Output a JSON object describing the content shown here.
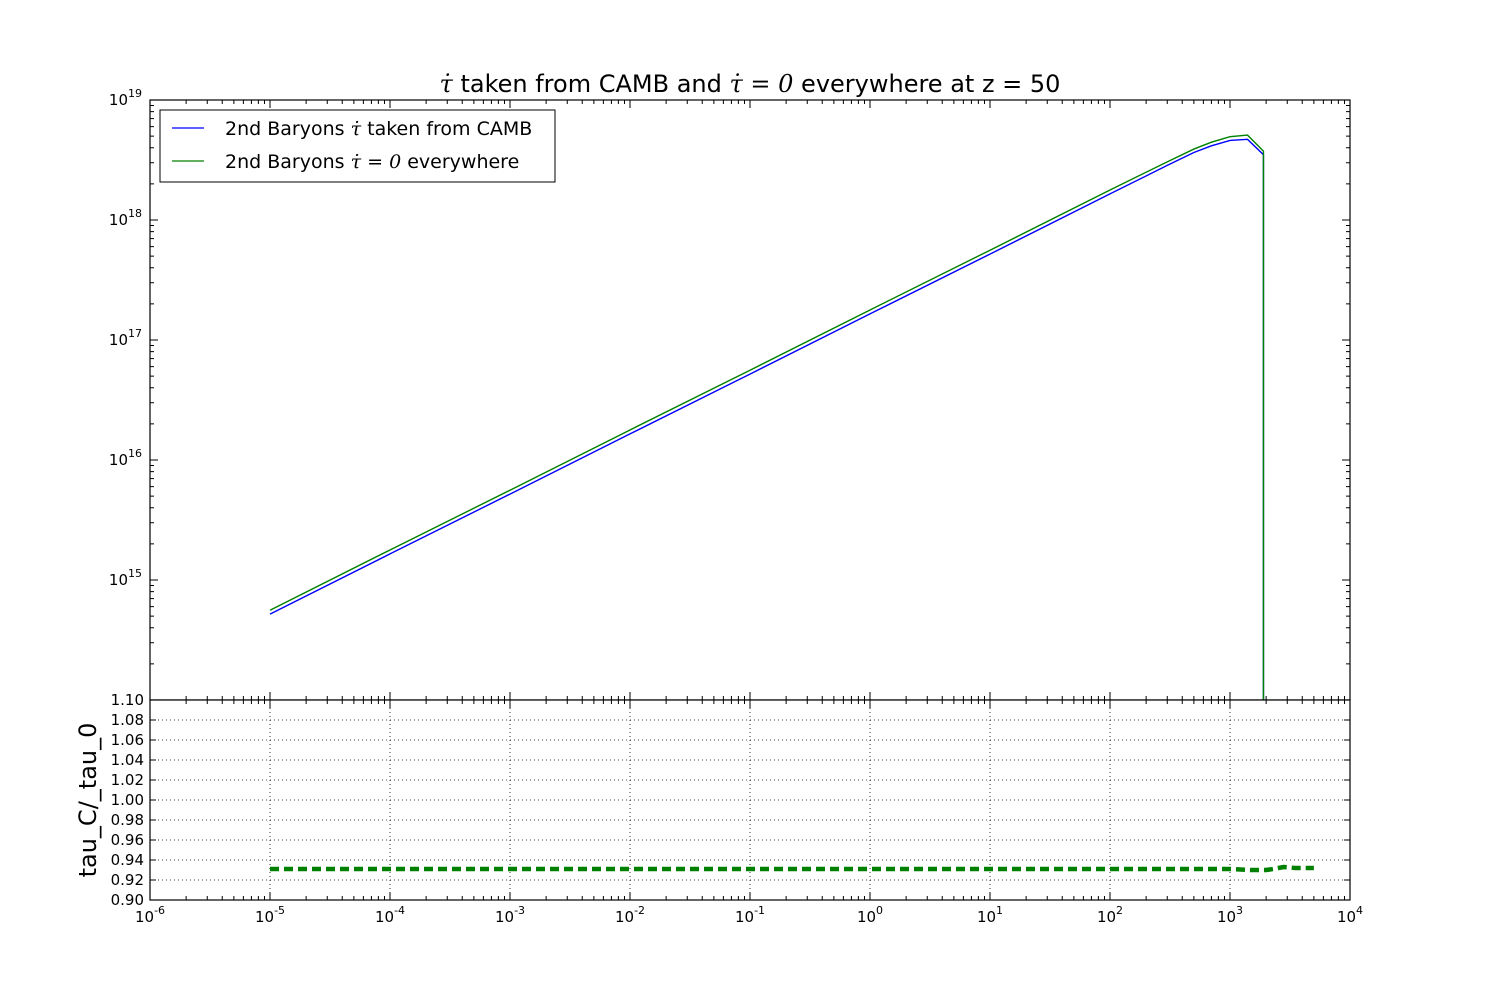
{
  "chart_data": [
    {
      "type": "line",
      "panel": "main",
      "title": {
        "sym1": "τ̇",
        "part1": " taken from CAMB and ",
        "sym2": "τ̇ = 0",
        "part2": " everywhere at z = 50"
      },
      "xscale": "log",
      "yscale": "log",
      "xlim": [
        1e-06,
        10000.0
      ],
      "ylim": [
        100000000000000.0,
        1e+19
      ],
      "grid": false,
      "legend_position": "top-left",
      "ytick_labels": [
        {
          "value": 1000000000000000.0,
          "base": "10",
          "exp": "15"
        },
        {
          "value": 1e+16,
          "base": "10",
          "exp": "16"
        },
        {
          "value": 1e+17,
          "base": "10",
          "exp": "17"
        },
        {
          "value": 1e+18,
          "base": "10",
          "exp": "18"
        },
        {
          "value": 1e+19,
          "base": "10",
          "exp": "19"
        }
      ],
      "legend": [
        {
          "prefix": "2nd Baryons ",
          "sym": "τ̇",
          "suffix": " taken from CAMB",
          "color": "#0000ff"
        },
        {
          "prefix": "2nd Baryons ",
          "sym": "τ̇ = 0",
          "suffix": " everywhere",
          "color": "#008000"
        }
      ],
      "series": [
        {
          "color": "#0000ff",
          "x": [
            1e-05,
            0.0001,
            0.001,
            0.01,
            0.1,
            1,
            10,
            100,
            300,
            500,
            700,
            1000,
            1400,
            1900,
            1900
          ],
          "y": [
            520000000000000.0,
            1650000000000000.0,
            5200000000000000.0,
            1.65e+16,
            5.2e+16,
            1.65e+17,
            5.2e+17,
            1.65e+18,
            2.85e+18,
            3.65e+18,
            4.15e+18,
            4.6e+18,
            4.7e+18,
            3.5e+18,
            100000000000000.0
          ]
        },
        {
          "color": "#008000",
          "x": [
            1e-05,
            0.0001,
            0.001,
            0.01,
            0.1,
            1,
            10,
            100,
            300,
            500,
            700,
            1000,
            1400,
            1900,
            1900
          ],
          "y": [
            560000000000000.0,
            1780000000000000.0,
            5600000000000000.0,
            1.78e+16,
            5.6e+16,
            1.78e+17,
            5.6e+17,
            1.78e+18,
            3.05e+18,
            3.9e+18,
            4.45e+18,
            4.95e+18,
            5.1e+18,
            3.75e+18,
            100000000000000.0
          ]
        }
      ]
    },
    {
      "type": "line",
      "panel": "ratio",
      "ylabel": "tau_C/_tau_0",
      "xscale": "log",
      "yscale": "linear",
      "xlim": [
        1e-06,
        10000.0
      ],
      "ylim": [
        0.9,
        1.1
      ],
      "grid": true,
      "yticks": [
        0.9,
        0.92,
        0.94,
        0.96,
        0.98,
        1.0,
        1.02,
        1.04,
        1.06,
        1.08,
        1.1
      ],
      "ytick_labels": [
        "0.90",
        "0.92",
        "0.94",
        "0.96",
        "0.98",
        "1.00",
        "1.02",
        "1.04",
        "1.06",
        "1.08",
        "1.10"
      ],
      "xtick_labels": [
        {
          "value": 1e-06,
          "base": "10",
          "exp": "-6"
        },
        {
          "value": 1e-05,
          "base": "10",
          "exp": "-5"
        },
        {
          "value": 0.0001,
          "base": "10",
          "exp": "-4"
        },
        {
          "value": 0.001,
          "base": "10",
          "exp": "-3"
        },
        {
          "value": 0.01,
          "base": "10",
          "exp": "-2"
        },
        {
          "value": 0.1,
          "base": "10",
          "exp": "-1"
        },
        {
          "value": 1,
          "base": "10",
          "exp": "0"
        },
        {
          "value": 10,
          "base": "10",
          "exp": "1"
        },
        {
          "value": 100,
          "base": "10",
          "exp": "2"
        },
        {
          "value": 1000,
          "base": "10",
          "exp": "3"
        },
        {
          "value": 10000,
          "base": "10",
          "exp": "4"
        }
      ],
      "series": [
        {
          "color": "#008000",
          "style": "dashed",
          "x": [
            1e-05,
            0.0001,
            0.001,
            0.01,
            0.1,
            1,
            10,
            100,
            1000,
            1500,
            2000,
            2300,
            2800,
            3500,
            5000
          ],
          "y": [
            0.931,
            0.931,
            0.931,
            0.931,
            0.931,
            0.931,
            0.931,
            0.931,
            0.931,
            0.93,
            0.93,
            0.931,
            0.933,
            0.932,
            0.932
          ]
        }
      ]
    }
  ]
}
